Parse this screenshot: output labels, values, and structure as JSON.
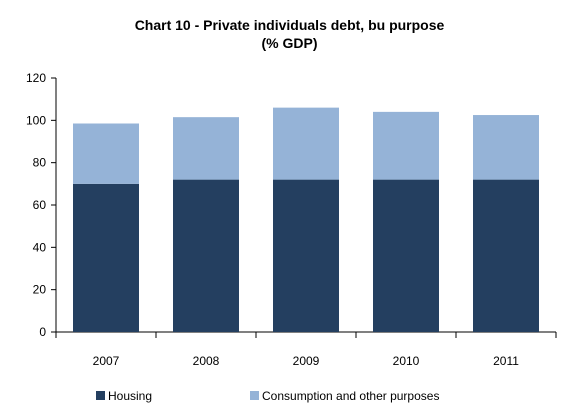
{
  "chart_data": {
    "type": "bar",
    "stacked": true,
    "title": "Chart 10 - Private individuals debt, bu purpose",
    "subtitle": "(% GDP)",
    "categories": [
      "2007",
      "2008",
      "2009",
      "2010",
      "2011"
    ],
    "series": [
      {
        "name": "Housing",
        "values": [
          70,
          72,
          72,
          72,
          72
        ],
        "color": "#243f60"
      },
      {
        "name": "Consumption and other purposes",
        "values": [
          28.5,
          29.5,
          34,
          32,
          30.5
        ],
        "color": "#95b3d7"
      }
    ],
    "ylim": [
      0,
      120
    ],
    "yticks": [
      0,
      20,
      40,
      60,
      80,
      100,
      120
    ],
    "grid": false,
    "legend": "bottom"
  }
}
